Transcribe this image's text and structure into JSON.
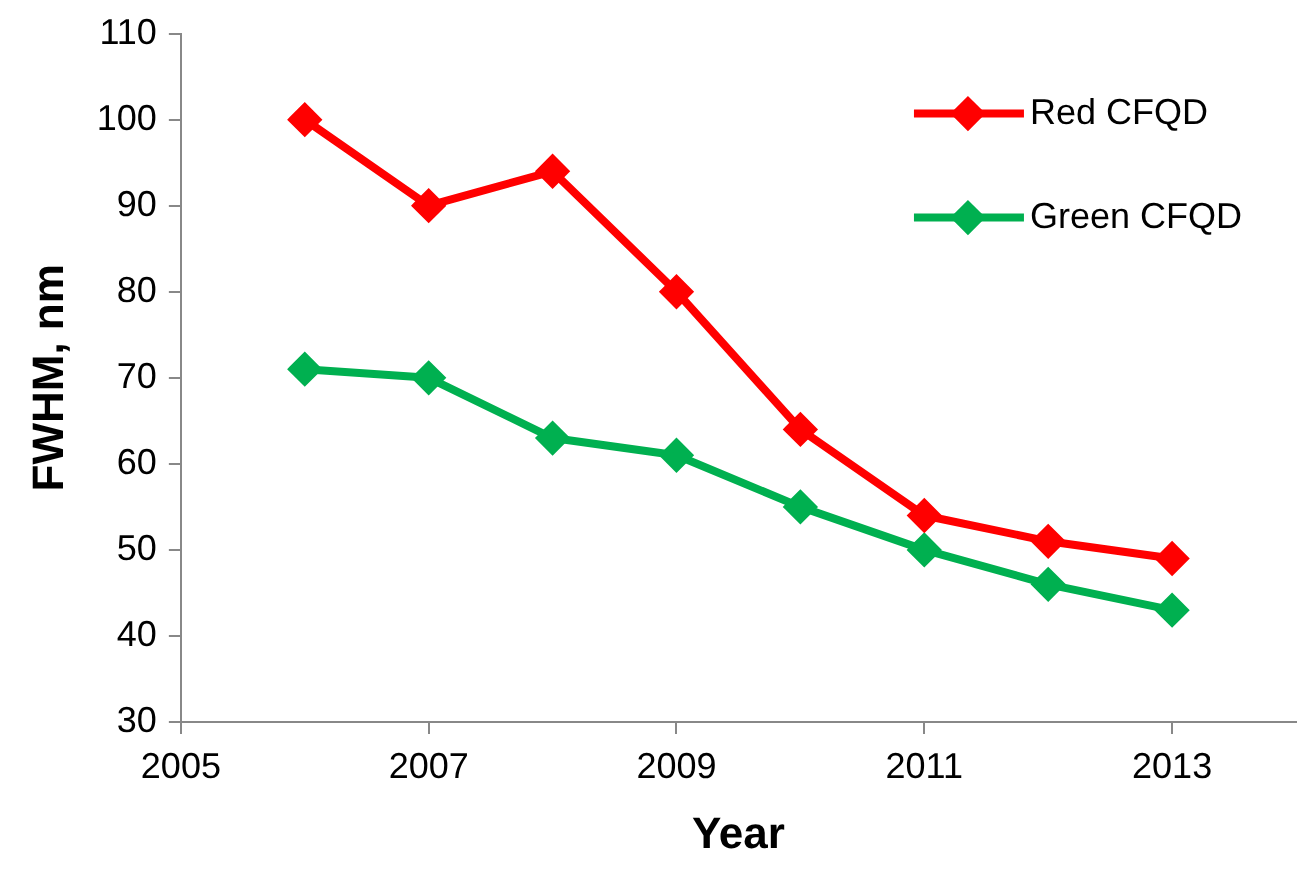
{
  "chart_data": {
    "type": "line",
    "xlabel": "Year",
    "ylabel": "FWHM, nm",
    "x": [
      2006,
      2007,
      2008,
      2009,
      2010,
      2011,
      2012,
      2013
    ],
    "series": [
      {
        "name": "Red CFQD",
        "color": "#ff0000",
        "values": [
          100,
          90,
          94,
          80,
          64,
          54,
          51,
          49
        ]
      },
      {
        "name": "Green CFQD",
        "color": "#00b050",
        "values": [
          71,
          70,
          63,
          61,
          55,
          50,
          46,
          43
        ]
      }
    ],
    "xlim": [
      2005,
      2014
    ],
    "xticks": [
      2005,
      2007,
      2009,
      2011,
      2013
    ],
    "ylim": [
      30,
      110
    ],
    "yticks": [
      30,
      40,
      50,
      60,
      70,
      80,
      90,
      100,
      110
    ],
    "grid": false,
    "legend": "top right",
    "marker": "diamond",
    "line_style": "solid"
  }
}
